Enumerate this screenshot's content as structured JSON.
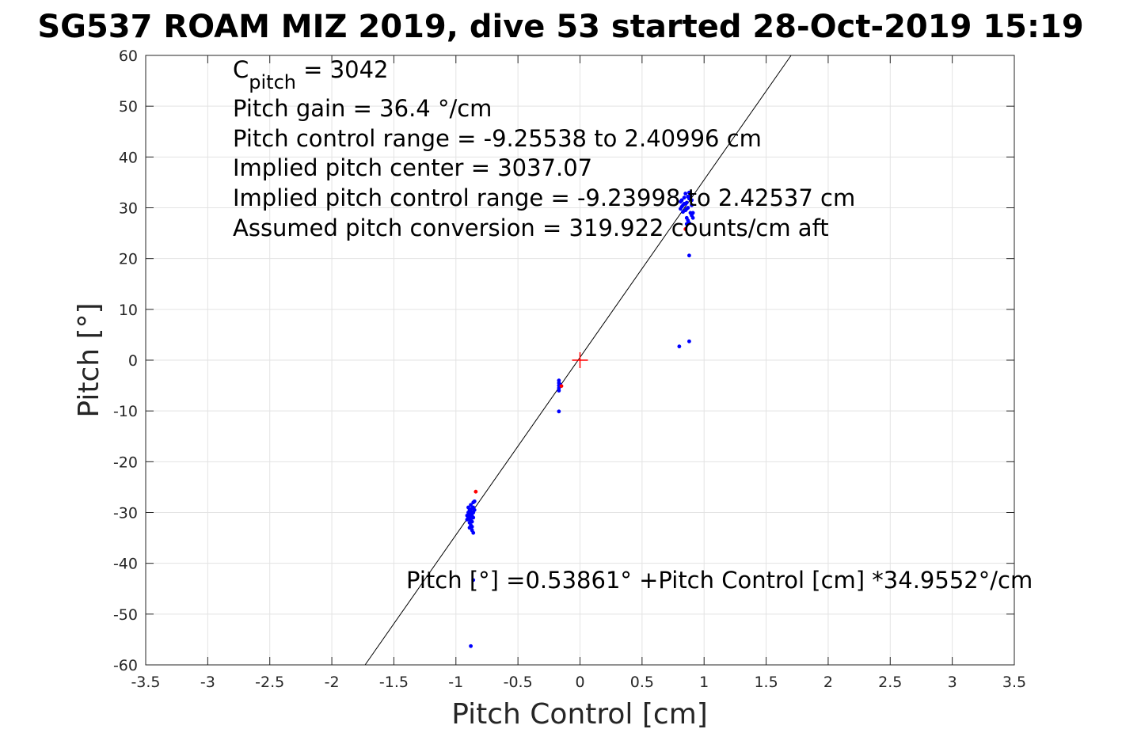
{
  "chart_data": {
    "type": "scatter",
    "title": "SG537 ROAM MIZ 2019, dive 53 started 28-Oct-2019 15:19",
    "xlabel": "Pitch Control [cm]",
    "ylabel": "Pitch [°]",
    "xlim": [
      -3.5,
      3.5
    ],
    "ylim": [
      -60,
      60
    ],
    "xticks": [
      -3.5,
      -3,
      -2.5,
      -2,
      -1.5,
      -1,
      -0.5,
      0,
      0.5,
      1,
      1.5,
      2,
      2.5,
      3,
      3.5
    ],
    "yticks": [
      -60,
      -50,
      -40,
      -30,
      -20,
      -10,
      0,
      10,
      20,
      30,
      40,
      50,
      60
    ],
    "xtick_labels": [
      "-3.5",
      "-3",
      "-2.5",
      "-2",
      "-1.5",
      "-1",
      "-0.5",
      "0",
      "0.5",
      "1",
      "1.5",
      "2",
      "2.5",
      "3",
      "3.5"
    ],
    "ytick_labels": [
      "-60",
      "-50",
      "-40",
      "-30",
      "-20",
      "-10",
      "0",
      "10",
      "20",
      "30",
      "40",
      "50",
      "60"
    ],
    "grid": true,
    "annotations": {
      "cpitch_base": "C",
      "cpitch_sub": "pitch",
      "cpitch_value": " = 3042",
      "lines": [
        "Pitch gain = 36.4 °/cm",
        "Pitch control range = -9.25538 to 2.40996 cm",
        "Implied pitch center = 3037.07",
        "Implied pitch control range = -9.23998 to 2.42537 cm",
        "Assumed pitch conversion = 319.922 counts/cm aft"
      ],
      "fit_label": "Pitch [°] =0.53861° +Pitch Control [cm] *34.9552°/cm"
    },
    "fit_line": {
      "intercept": 0.53861,
      "slope": 34.9552
    },
    "center_marker": {
      "x": 0,
      "y": 0,
      "color": "#ff0000"
    },
    "series": [
      {
        "color": "#0000ff",
        "points": [
          [
            -0.9,
            -31.0
          ],
          [
            -0.89,
            -30.5
          ],
          [
            -0.9,
            -30.0
          ],
          [
            -0.89,
            -29.5
          ],
          [
            -0.88,
            -31.5
          ],
          [
            -0.88,
            -30.8
          ],
          [
            -0.89,
            -32.0
          ],
          [
            -0.9,
            -29.0
          ],
          [
            -0.87,
            -30.2
          ],
          [
            -0.88,
            -29.8
          ],
          [
            -0.91,
            -30.6
          ],
          [
            -0.87,
            -31.8
          ],
          [
            -0.88,
            -32.5
          ],
          [
            -0.89,
            -33.0
          ],
          [
            -0.87,
            -29.2
          ],
          [
            -0.88,
            -28.5
          ],
          [
            -0.86,
            -30.0
          ],
          [
            -0.86,
            -31.0
          ],
          [
            -0.87,
            -32.8
          ],
          [
            -0.86,
            -28.0
          ],
          [
            -0.86,
            -34.0
          ],
          [
            -0.87,
            -33.5
          ],
          [
            -0.9,
            -30.9
          ],
          [
            -0.88,
            -30.1
          ],
          [
            -0.89,
            -31.3
          ],
          [
            -0.87,
            -30.7
          ],
          [
            -0.85,
            -29.5
          ],
          [
            -0.85,
            -27.8
          ],
          [
            -0.86,
            -29.0
          ],
          [
            -0.91,
            -31.4
          ],
          [
            -0.86,
            -43.3
          ],
          [
            -0.88,
            -56.3
          ],
          [
            -0.17,
            -4.0
          ],
          [
            -0.17,
            -4.5
          ],
          [
            -0.17,
            -5.0
          ],
          [
            -0.17,
            -5.5
          ],
          [
            -0.17,
            -6.0
          ],
          [
            -0.16,
            -4.8
          ],
          [
            -0.17,
            -10.1
          ],
          [
            0.8,
            2.7
          ],
          [
            0.88,
            3.7
          ],
          [
            0.88,
            20.6
          ],
          [
            0.82,
            31.5
          ],
          [
            0.83,
            30.5
          ],
          [
            0.84,
            32.0
          ],
          [
            0.85,
            29.5
          ],
          [
            0.86,
            31.0
          ],
          [
            0.87,
            30.0
          ],
          [
            0.88,
            31.8
          ],
          [
            0.89,
            29.0
          ],
          [
            0.9,
            28.5
          ],
          [
            0.86,
            28.0
          ],
          [
            0.87,
            27.5
          ],
          [
            0.88,
            27.0
          ],
          [
            0.9,
            30.5
          ],
          [
            0.91,
            29.0
          ],
          [
            0.89,
            32.5
          ],
          [
            0.88,
            33.0
          ],
          [
            0.85,
            32.8
          ],
          [
            0.84,
            30.8
          ],
          [
            0.83,
            29.2
          ],
          [
            0.82,
            30.2
          ],
          [
            0.81,
            31.2
          ],
          [
            0.81,
            29.8
          ],
          [
            0.9,
            31.5
          ],
          [
            0.91,
            28.0
          ],
          [
            0.87,
            32.2
          ],
          [
            0.86,
            29.8
          ],
          [
            0.85,
            30.8
          ],
          [
            0.86,
            26.8
          ]
        ]
      },
      {
        "color": "#ff0000",
        "points": [
          [
            -0.84,
            -25.9
          ],
          [
            -0.15,
            -5.1
          ],
          [
            0.85,
            25.8
          ]
        ]
      }
    ]
  }
}
